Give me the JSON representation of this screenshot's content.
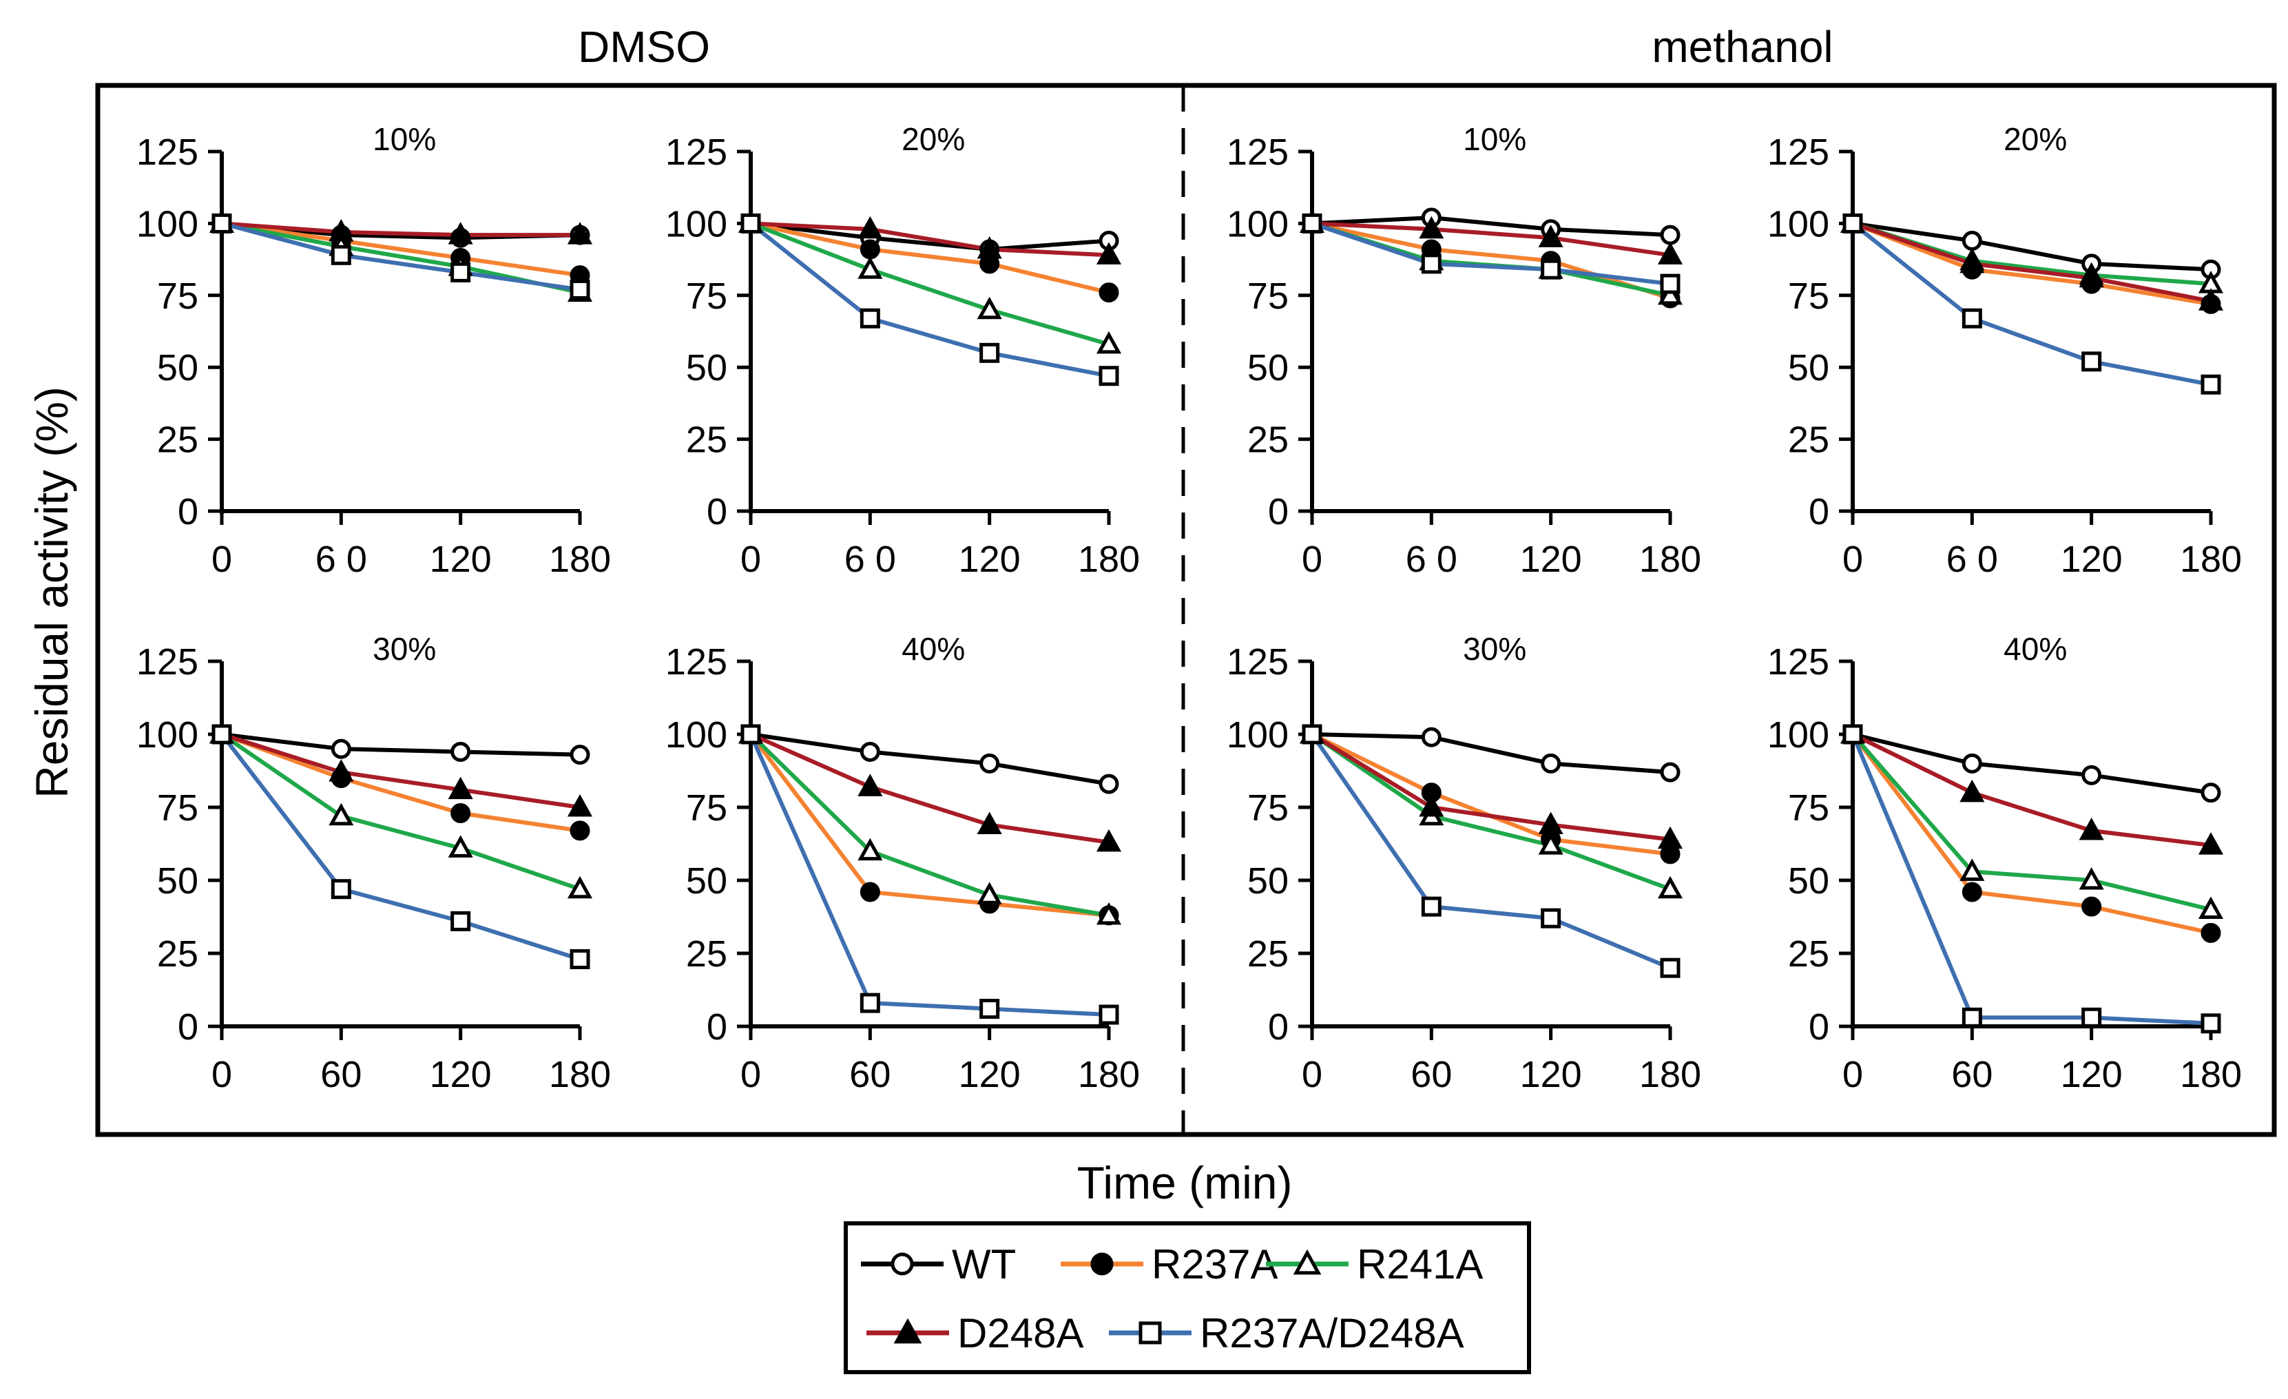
{
  "chart_data": {
    "type": "line",
    "group_titles": [
      "DMSO",
      "methanol"
    ],
    "ylabel": "Residual activity (%)",
    "xlabel": "Time (min)",
    "ylim": [
      0,
      125
    ],
    "yticks": [
      "0",
      "25",
      "50",
      "75",
      "100",
      "125"
    ],
    "xlim": [
      0,
      180
    ],
    "x": [
      0,
      60,
      120,
      180
    ],
    "colors": {
      "WT": "#000000",
      "R237A": "#f58231",
      "R241A": "#1fa84a",
      "D248A": "#a81c26",
      "R237A/D248A": "#3e6fb0"
    },
    "legend": [
      {
        "name": "WT",
        "marker": "open-circle"
      },
      {
        "name": "R237A",
        "marker": "filled-circle"
      },
      {
        "name": "R241A",
        "marker": "open-triangle"
      },
      {
        "name": "D248A",
        "marker": "filled-triangle"
      },
      {
        "name": "R237A/D248A",
        "marker": "open-square"
      }
    ],
    "panels": [
      {
        "group": "DMSO",
        "title": "10%",
        "xticks": [
          "0",
          "6 0",
          "120",
          "180"
        ],
        "series": [
          {
            "name": "WT",
            "values": [
              100,
              96,
              95,
              96
            ]
          },
          {
            "name": "R237A",
            "values": [
              100,
              94,
              88,
              82
            ]
          },
          {
            "name": "R241A",
            "values": [
              100,
              92,
              85,
              76
            ]
          },
          {
            "name": "D248A",
            "values": [
              100,
              97,
              96,
              96
            ]
          },
          {
            "name": "R237A/D248A",
            "values": [
              100,
              89,
              83,
              77
            ]
          }
        ]
      },
      {
        "group": "DMSO",
        "title": "20%",
        "xticks": [
          "0",
          "6 0",
          "120",
          "180"
        ],
        "series": [
          {
            "name": "WT",
            "values": [
              100,
              95,
              91,
              94
            ]
          },
          {
            "name": "R237A",
            "values": [
              100,
              91,
              86,
              76
            ]
          },
          {
            "name": "R241A",
            "values": [
              100,
              84,
              70,
              58
            ]
          },
          {
            "name": "D248A",
            "values": [
              100,
              98,
              91,
              89
            ]
          },
          {
            "name": "R237A/D248A",
            "values": [
              100,
              67,
              55,
              47
            ]
          }
        ]
      },
      {
        "group": "methanol",
        "title": "10%",
        "xticks": [
          "0",
          "6 0",
          "120",
          "180"
        ],
        "series": [
          {
            "name": "WT",
            "values": [
              100,
              102,
              98,
              96
            ]
          },
          {
            "name": "R237A",
            "values": [
              100,
              91,
              87,
              74
            ]
          },
          {
            "name": "R241A",
            "values": [
              100,
              87,
              84,
              75
            ]
          },
          {
            "name": "D248A",
            "values": [
              100,
              98,
              95,
              89
            ]
          },
          {
            "name": "R237A/D248A",
            "values": [
              100,
              86,
              84,
              79
            ]
          }
        ]
      },
      {
        "group": "methanol",
        "title": "20%",
        "xticks": [
          "0",
          "6 0",
          "120",
          "180"
        ],
        "series": [
          {
            "name": "WT",
            "values": [
              100,
              94,
              86,
              84
            ]
          },
          {
            "name": "R237A",
            "values": [
              100,
              84,
              79,
              72
            ]
          },
          {
            "name": "R241A",
            "values": [
              100,
              87,
              82,
              79
            ]
          },
          {
            "name": "D248A",
            "values": [
              100,
              86,
              81,
              73
            ]
          },
          {
            "name": "R237A/D248A",
            "values": [
              100,
              67,
              52,
              44
            ]
          }
        ]
      },
      {
        "group": "DMSO",
        "title": "30%",
        "xticks": [
          "0",
          "60",
          "120",
          "180"
        ],
        "series": [
          {
            "name": "WT",
            "values": [
              100,
              95,
              94,
              93
            ]
          },
          {
            "name": "R237A",
            "values": [
              100,
              85,
              73,
              67
            ]
          },
          {
            "name": "R241A",
            "values": [
              100,
              72,
              61,
              47
            ]
          },
          {
            "name": "D248A",
            "values": [
              100,
              87,
              81,
              75
            ]
          },
          {
            "name": "R237A/D248A",
            "values": [
              100,
              47,
              36,
              23
            ]
          }
        ]
      },
      {
        "group": "DMSO",
        "title": "40%",
        "xticks": [
          "0",
          "60",
          "120",
          "180"
        ],
        "series": [
          {
            "name": "WT",
            "values": [
              100,
              94,
              90,
              83
            ]
          },
          {
            "name": "R237A",
            "values": [
              100,
              46,
              42,
              38
            ]
          },
          {
            "name": "R241A",
            "values": [
              100,
              60,
              45,
              38
            ]
          },
          {
            "name": "D248A",
            "values": [
              100,
              82,
              69,
              63
            ]
          },
          {
            "name": "R237A/D248A",
            "values": [
              100,
              8,
              6,
              4
            ]
          }
        ]
      },
      {
        "group": "methanol",
        "title": "30%",
        "xticks": [
          "0",
          "60",
          "120",
          "180"
        ],
        "series": [
          {
            "name": "WT",
            "values": [
              100,
              99,
              90,
              87
            ]
          },
          {
            "name": "R237A",
            "values": [
              100,
              80,
              64,
              59
            ]
          },
          {
            "name": "R241A",
            "values": [
              100,
              72,
              62,
              47
            ]
          },
          {
            "name": "D248A",
            "values": [
              100,
              75,
              69,
              64
            ]
          },
          {
            "name": "R237A/D248A",
            "values": [
              100,
              41,
              37,
              20
            ]
          }
        ]
      },
      {
        "group": "methanol",
        "title": "40%",
        "xticks": [
          "0",
          "60",
          "120",
          "180"
        ],
        "series": [
          {
            "name": "WT",
            "values": [
              100,
              90,
              86,
              80
            ]
          },
          {
            "name": "R237A",
            "values": [
              100,
              46,
              41,
              32
            ]
          },
          {
            "name": "R241A",
            "values": [
              100,
              53,
              50,
              40
            ]
          },
          {
            "name": "D248A",
            "values": [
              100,
              80,
              67,
              62
            ]
          },
          {
            "name": "R237A/D248A",
            "values": [
              100,
              3,
              3,
              1
            ]
          }
        ]
      }
    ]
  }
}
